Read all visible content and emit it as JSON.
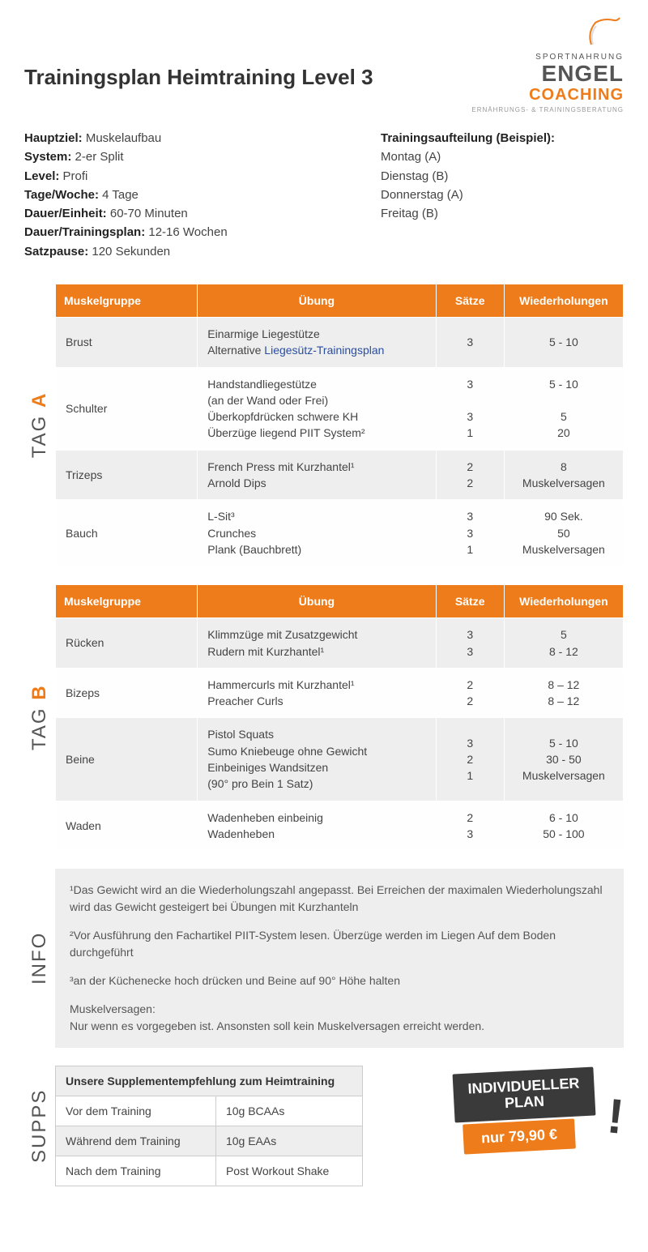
{
  "colors": {
    "accent": "#ee7c1a",
    "text": "#333",
    "alt_row": "#eeeeee",
    "link": "#2a4ea0",
    "dark": "#3a3a3a"
  },
  "logo": {
    "sport": "SPORTNAHRUNG",
    "engel": "ENGEL",
    "coaching": "COACHING",
    "sub": "ERNÄHRUNGS- & TRAININGSBERATUNG"
  },
  "title": "Trainingsplan Heimtraining Level 3",
  "metaLeft": [
    {
      "label": "Hauptziel:",
      "value": "Muskelaufbau"
    },
    {
      "label": "System:",
      "value": "2-er Split"
    },
    {
      "label": "Level:",
      "value": "Profi"
    },
    {
      "label": "Tage/Woche:",
      "value": "4 Tage"
    },
    {
      "label": "Dauer/Einheit:",
      "value": "60-70 Minuten"
    },
    {
      "label": "Dauer/Trainingsplan:",
      "value": "12-16 Wochen"
    },
    {
      "label": "Satzpause:",
      "value": "120 Sekunden"
    }
  ],
  "metaRight": {
    "title": "Trainingsaufteilung (Beispiel):",
    "lines": [
      "Montag (A)",
      "Dienstag (B)",
      "Donnerstag (A)",
      "Freitag (B)"
    ]
  },
  "table": {
    "headers": [
      "Muskelgruppe",
      "Übung",
      "Sätze",
      "Wiederholungen"
    ],
    "col_widths": [
      "25%",
      "42%",
      "12%",
      "21%"
    ]
  },
  "tagA": {
    "label": "TAG",
    "accent": "A",
    "rows": [
      {
        "group": "Brust",
        "ex": "Einarmige Liegestütze<br>Alternative <span class=\"link\">Liegesütz-Trainingsplan</span>",
        "sets": "3",
        "reps": "5 - 10"
      },
      {
        "group": "Schulter",
        "ex": "Handstandliegestütze<br>(an der Wand oder Frei)<br>Überkopfdrücken schwere KH<br>Überzüge liegend PIIT System²",
        "sets": "3<br><br>3<br>1",
        "reps": "5 - 10<br><br>5<br>20"
      },
      {
        "group": "Trizeps",
        "ex": "French Press mit Kurzhantel¹<br>Arnold Dips",
        "sets": "2<br>2",
        "reps": "8<br>Muskelversagen"
      },
      {
        "group": "Bauch",
        "ex": "L-Sit³<br>Crunches<br>Plank (Bauchbrett)",
        "sets": "3<br>3<br>1",
        "reps": "90 Sek.<br>50<br>Muskelversagen"
      }
    ]
  },
  "tagB": {
    "label": "TAG",
    "accent": "B",
    "rows": [
      {
        "group": "Rücken",
        "ex": "Klimmzüge mit Zusatzgewicht<br>Rudern mit Kurzhantel¹",
        "sets": "3<br>3",
        "reps": "5<br>8 - 12"
      },
      {
        "group": "Bizeps",
        "ex": "Hammercurls mit Kurzhantel¹<br>Preacher Curls",
        "sets": "2<br>2",
        "reps": "8 – 12<br>8 – 12"
      },
      {
        "group": "Beine",
        "ex": "Pistol Squats<br>Sumo Kniebeuge ohne Gewicht<br>Einbeiniges Wandsitzen<br>(90° pro Bein 1 Satz)",
        "sets": "3<br>2<br>1",
        "reps": "5 - 10<br>30 - 50<br>Muskelversagen"
      },
      {
        "group": "Waden",
        "ex": "Wadenheben einbeinig<br>Wadenheben",
        "sets": "2<br>3",
        "reps": "6 - 10<br>50 - 100"
      }
    ]
  },
  "info": {
    "label": "INFO",
    "paras": [
      "¹Das Gewicht wird an die Wiederholungszahl angepasst. Bei Erreichen der maximalen Wiederholungszahl wird das Gewicht gesteigert bei Übungen mit Kurzhanteln",
      "²Vor Ausführung den Fachartikel PIIT-System lesen. Überzüge werden im Liegen Auf dem Boden durchgeführt",
      "³an der Küchenecke hoch drücken und Beine auf 90° Höhe halten",
      "Muskelversagen:\nNur wenn es vorgegeben ist. Ansonsten soll kein Muskelversagen erreicht werden."
    ]
  },
  "supps": {
    "label": "SUPPS",
    "title": "Unsere Supplementempfehlung zum Heimtraining",
    "rows": [
      {
        "k": "Vor dem Training",
        "v": "10g BCAAs"
      },
      {
        "k": "Während dem Training",
        "v": "10g EAAs"
      },
      {
        "k": "Nach dem Training",
        "v": "Post Workout Shake"
      }
    ]
  },
  "promo": {
    "top": "INDIVIDUELLER\nPLAN",
    "bot": "nur 79,90 €"
  }
}
